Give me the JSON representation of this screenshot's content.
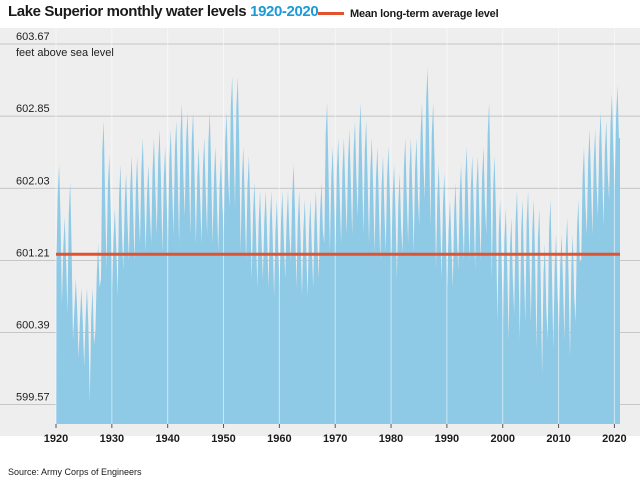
{
  "header": {
    "title": "Lake Superior monthly water levels",
    "title_years": "1920-2020",
    "legend_label": "Mean long-term average level"
  },
  "source": "Source: Army Corps of Engineers",
  "colors": {
    "area": "#8ec9e6",
    "mean_line": "#e1522f",
    "plot_background": "#eeeeee",
    "accent": "#1b9ad6"
  },
  "chart_data": {
    "type": "area",
    "title": "Lake Superior monthly water levels 1920-2020",
    "ylabel": "feet above sea level",
    "xlabel": "",
    "x_ticks": [
      "1920",
      "1930",
      "1940",
      "1950",
      "1960",
      "1970",
      "1980",
      "1990",
      "2000",
      "2010",
      "2020"
    ],
    "y_ticks": [
      599.57,
      600.39,
      601.21,
      602.03,
      602.85,
      603.67
    ],
    "y_tick_labels": [
      "599.57",
      "600.39",
      "601.21",
      "602.03",
      "602.85",
      "603.67"
    ],
    "xlim": [
      1920,
      2021
    ],
    "ylim": [
      599.35,
      603.67
    ],
    "grid": true,
    "legend_position": "top",
    "mean_level": 601.28,
    "series": [
      {
        "name": "Monthly water level",
        "x": [
          1920,
          1921,
          1922,
          1923,
          1924,
          1925,
          1926,
          1927,
          1928,
          1929,
          1930,
          1931,
          1932,
          1933,
          1934,
          1935,
          1936,
          1937,
          1938,
          1939,
          1940,
          1941,
          1942,
          1943,
          1944,
          1945,
          1946,
          1947,
          1948,
          1949,
          1950,
          1951,
          1952,
          1953,
          1954,
          1955,
          1956,
          1957,
          1958,
          1959,
          1960,
          1961,
          1962,
          1963,
          1964,
          1965,
          1966,
          1967,
          1968,
          1969,
          1970,
          1971,
          1972,
          1973,
          1974,
          1975,
          1976,
          1977,
          1978,
          1979,
          1980,
          1981,
          1982,
          1983,
          1984,
          1985,
          1986,
          1987,
          1988,
          1989,
          1990,
          1991,
          1992,
          1993,
          1994,
          1995,
          1996,
          1997,
          1998,
          1999,
          2000,
          2001,
          2002,
          2003,
          2004,
          2005,
          2006,
          2007,
          2008,
          2009,
          2010,
          2011,
          2012,
          2013,
          2014,
          2015,
          2016,
          2017,
          2018,
          2019,
          2020
        ],
        "high": [
          602.3,
          601.7,
          602.1,
          601.0,
          600.9,
          600.9,
          600.9,
          601.4,
          602.8,
          602.4,
          601.8,
          602.3,
          602.2,
          602.4,
          602.4,
          602.6,
          602.3,
          602.6,
          602.7,
          602.5,
          602.7,
          602.8,
          603.0,
          602.9,
          602.9,
          602.5,
          602.6,
          602.9,
          602.5,
          602.4,
          602.9,
          603.3,
          603.3,
          602.5,
          602.4,
          602.1,
          602.0,
          602.0,
          602.0,
          601.9,
          602.0,
          602.0,
          602.3,
          602.0,
          601.9,
          601.9,
          602.0,
          602.1,
          603.0,
          602.5,
          602.6,
          602.6,
          602.7,
          602.8,
          603.0,
          602.8,
          602.6,
          602.5,
          602.4,
          602.5,
          602.3,
          602.2,
          602.6,
          602.6,
          602.6,
          603.0,
          603.4,
          603.0,
          602.3,
          602.2,
          601.9,
          602.1,
          602.3,
          602.5,
          602.4,
          602.4,
          602.5,
          603.0,
          602.4,
          601.9,
          601.8,
          601.7,
          602.0,
          601.9,
          602.0,
          601.9,
          601.8,
          601.4,
          601.9,
          601.5,
          601.5,
          601.7,
          601.5,
          601.9,
          602.5,
          602.7,
          602.7,
          602.9,
          602.8,
          603.1,
          603.2
        ],
        "low": [
          601.1,
          600.7,
          600.6,
          600.3,
          600.1,
          600.0,
          599.6,
          600.4,
          601.0,
          601.1,
          600.9,
          600.8,
          601.1,
          601.2,
          601.2,
          601.4,
          601.3,
          601.4,
          601.5,
          601.3,
          601.4,
          601.5,
          601.4,
          601.7,
          601.5,
          601.4,
          601.4,
          601.5,
          601.4,
          601.3,
          601.5,
          601.8,
          601.8,
          601.3,
          601.2,
          601.0,
          600.9,
          601.0,
          600.9,
          600.8,
          600.9,
          601.0,
          601.2,
          600.9,
          600.8,
          600.8,
          600.9,
          601.0,
          601.4,
          601.3,
          601.3,
          601.4,
          601.5,
          601.5,
          601.7,
          601.5,
          601.4,
          601.3,
          601.2,
          601.3,
          601.2,
          601.0,
          601.3,
          601.4,
          601.3,
          601.6,
          601.9,
          601.6,
          601.1,
          601.0,
          600.9,
          600.9,
          601.1,
          601.2,
          601.2,
          601.1,
          601.2,
          601.5,
          601.0,
          600.5,
          600.5,
          600.3,
          600.6,
          600.3,
          600.5,
          600.5,
          600.2,
          599.9,
          600.3,
          600.2,
          600.4,
          600.3,
          600.1,
          600.5,
          601.2,
          601.5,
          601.5,
          601.7,
          601.6,
          601.9,
          602.0
        ]
      }
    ]
  }
}
